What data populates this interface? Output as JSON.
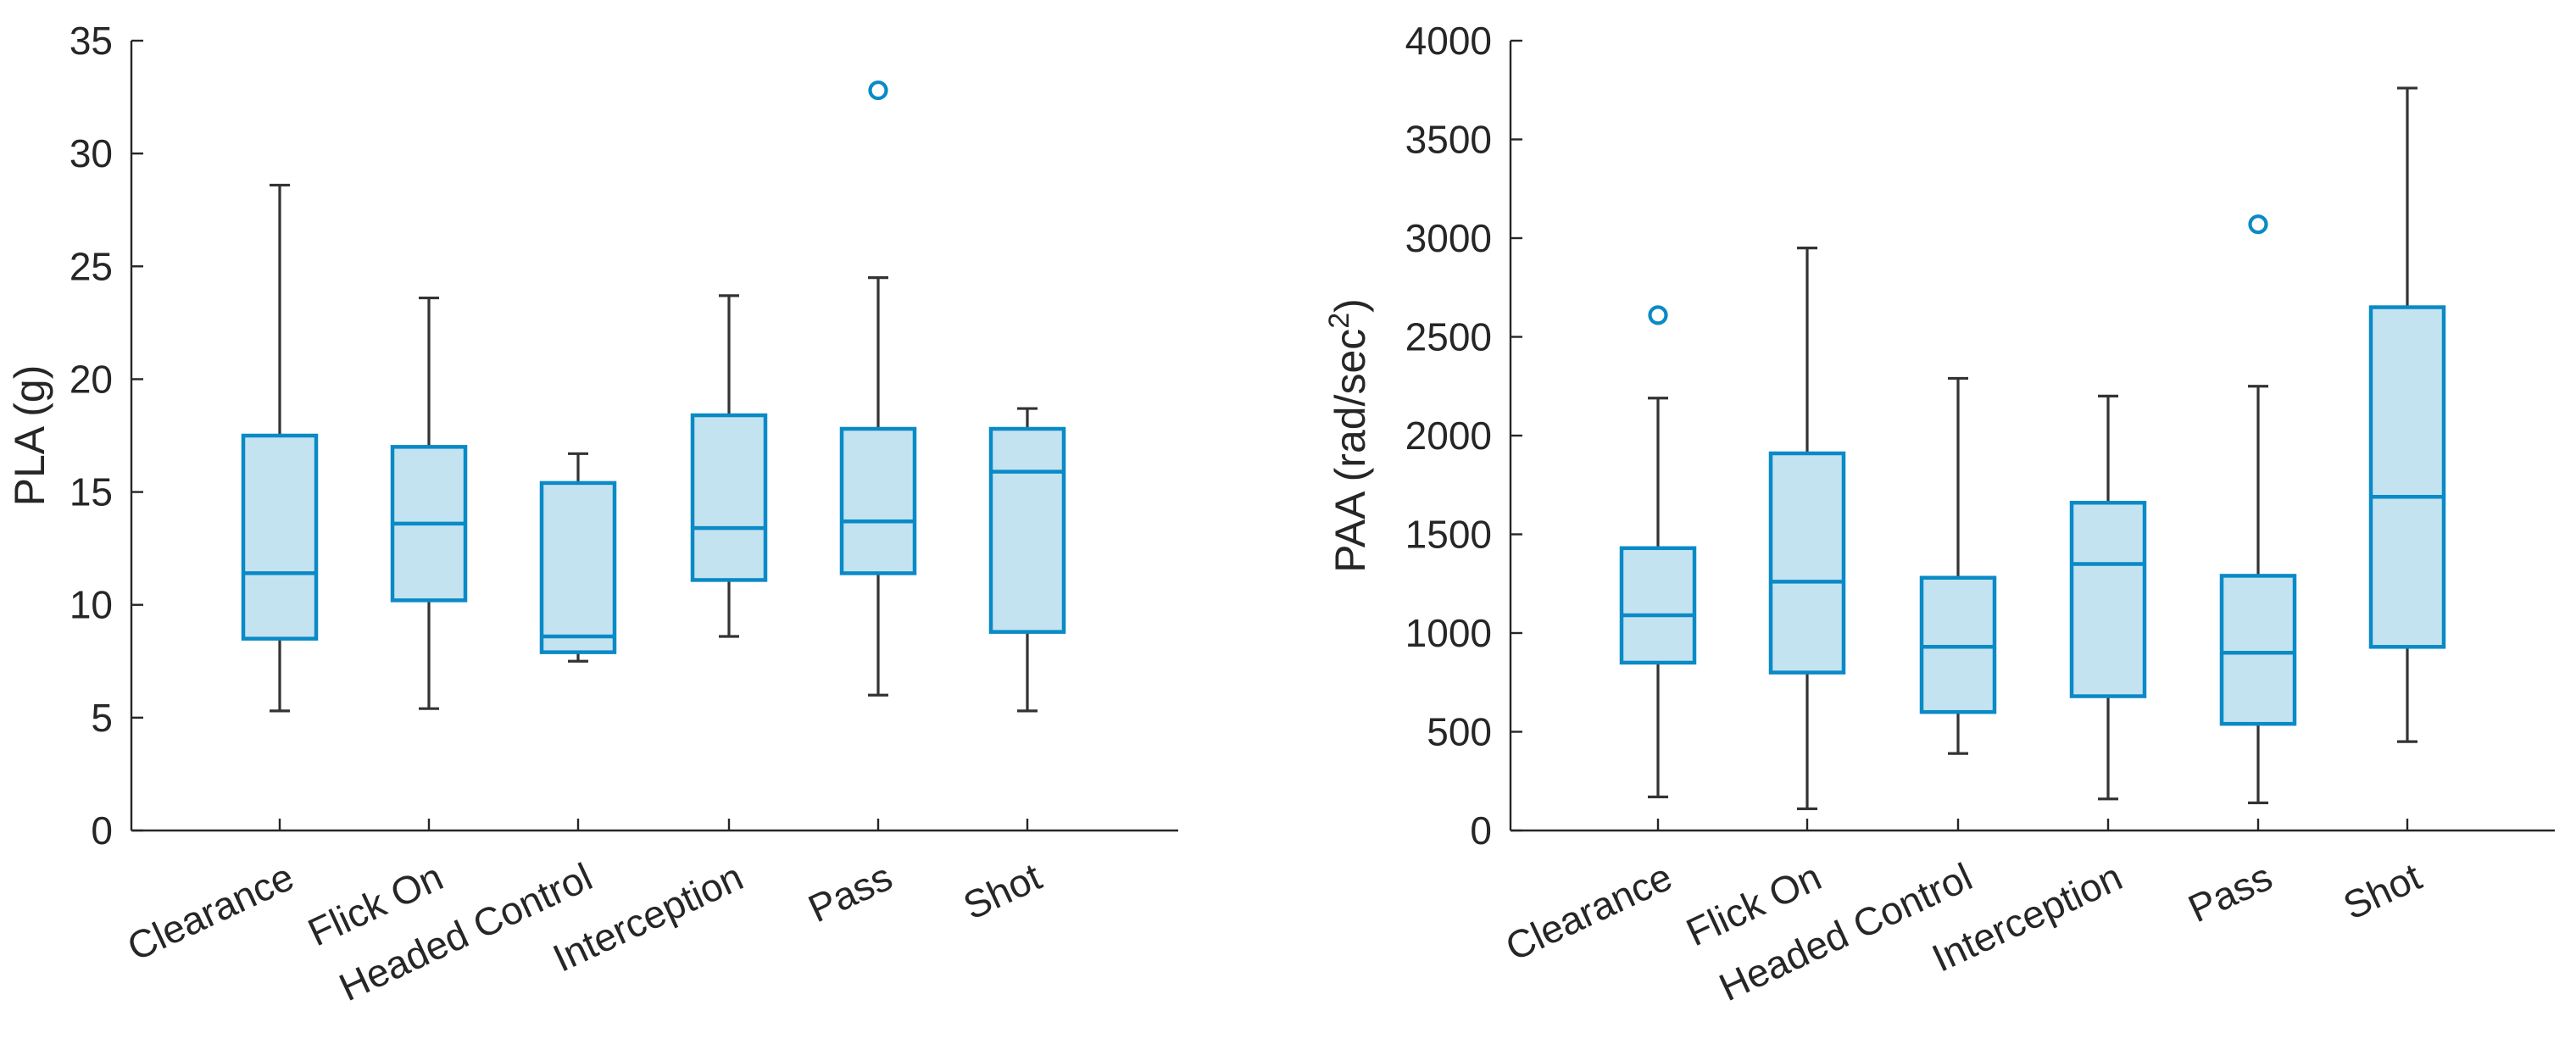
{
  "colors": {
    "box_fill": "#c4e3f1",
    "box_edge": "#0a8ac6",
    "whisker": "#333333",
    "axis": "#262626"
  },
  "chart_data": [
    {
      "type": "box",
      "title": "",
      "xlabel": "",
      "ylabel": "PLA (g)",
      "ylim": [
        0,
        35
      ],
      "yticks": [
        0,
        5,
        10,
        15,
        20,
        25,
        30,
        35
      ],
      "ytick_labels": [
        "0",
        "5",
        "10",
        "15",
        "20",
        "25",
        "30",
        "35"
      ],
      "categories": [
        "Clearance",
        "Flick On",
        "Headed Control",
        "Interception",
        "Pass",
        "Shot"
      ],
      "boxes": [
        {
          "min": 5.3,
          "q1": 8.5,
          "median": 11.4,
          "q3": 17.5,
          "max": 28.6,
          "outliers": []
        },
        {
          "min": 5.4,
          "q1": 10.2,
          "median": 13.6,
          "q3": 17.0,
          "max": 23.6,
          "outliers": []
        },
        {
          "min": 7.5,
          "q1": 7.9,
          "median": 8.6,
          "q3": 15.4,
          "max": 16.7,
          "outliers": []
        },
        {
          "min": 8.6,
          "q1": 11.1,
          "median": 13.4,
          "q3": 18.4,
          "max": 23.7,
          "outliers": []
        },
        {
          "min": 6.0,
          "q1": 11.4,
          "median": 13.7,
          "q3": 17.8,
          "max": 24.5,
          "outliers": [
            32.8
          ]
        },
        {
          "min": 5.3,
          "q1": 8.8,
          "median": 15.9,
          "q3": 17.8,
          "max": 18.7,
          "outliers": []
        }
      ]
    },
    {
      "type": "box",
      "title": "",
      "xlabel": "",
      "ylabel": "PAA (rad/sec",
      "ylabel_sup": "2",
      "ylabel_close": ")",
      "ylim": [
        0,
        4000
      ],
      "yticks": [
        0,
        500,
        1000,
        1500,
        2000,
        2500,
        3000,
        3500,
        4000
      ],
      "ytick_labels": [
        "0",
        "500",
        "1000",
        "1500",
        "2000",
        "2500",
        "3000",
        "3500",
        "4000"
      ],
      "categories": [
        "Clearance",
        "Flick On",
        "Headed Control",
        "Interception",
        "Pass",
        "Shot"
      ],
      "boxes": [
        {
          "min": 170,
          "q1": 850,
          "median": 1090,
          "q3": 1430,
          "max": 2190,
          "outliers": [
            2610
          ]
        },
        {
          "min": 110,
          "q1": 800,
          "median": 1260,
          "q3": 1910,
          "max": 2950,
          "outliers": []
        },
        {
          "min": 390,
          "q1": 600,
          "median": 930,
          "q3": 1280,
          "max": 2290,
          "outliers": []
        },
        {
          "min": 160,
          "q1": 680,
          "median": 1350,
          "q3": 1660,
          "max": 2200,
          "outliers": []
        },
        {
          "min": 140,
          "q1": 540,
          "median": 900,
          "q3": 1290,
          "max": 2250,
          "outliers": [
            3070
          ]
        },
        {
          "min": 450,
          "q1": 930,
          "median": 1690,
          "q3": 2650,
          "max": 3760,
          "outliers": []
        }
      ]
    }
  ]
}
